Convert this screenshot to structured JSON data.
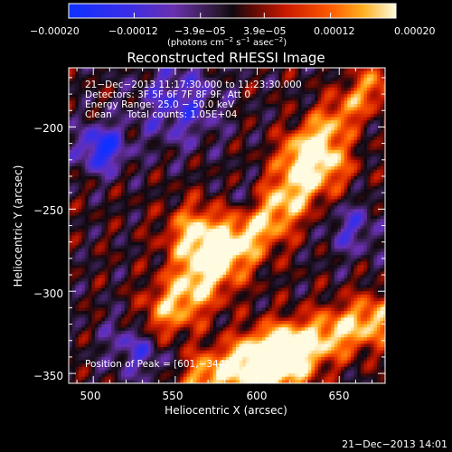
{
  "chart_data": {
    "type": "heatmap",
    "title": "Reconstructed RHESSI Image",
    "xlabel": "Heliocentric X (arcsec)",
    "ylabel": "Heliocentric Y (arcsec)",
    "xlim": [
      485,
      678
    ],
    "ylim": [
      -356,
      -164
    ],
    "x_ticks": [
      500,
      550,
      600,
      650
    ],
    "y_ticks": [
      -200,
      -250,
      -300,
      -350
    ],
    "x_tick_labels": [
      "500",
      "550",
      "600",
      "650"
    ],
    "y_tick_labels": [
      "−200",
      "−250",
      "−300",
      "−350"
    ],
    "colorbar": {
      "range": [
        -0.0002,
        0.0002
      ],
      "tick_labels": [
        "−0.00020",
        "−0.00012",
        "−3.9e−05",
        "3.9e−05",
        "0.00012",
        "0.00020"
      ],
      "units_main": "(photons cm",
      "units_exp1": "−2",
      "units_mid": " s",
      "units_exp2": "−1",
      "units_mid2": " asec",
      "units_exp3": "−2",
      "units_end": ")"
    },
    "peak": {
      "x": 601,
      "y": -344
    },
    "features": [
      {
        "kind": "ridge",
        "from": [
          540,
          -318
        ],
        "to": [
          640,
          -222
        ],
        "width": 12,
        "amplitude": 0.00019
      },
      {
        "kind": "ridge",
        "from": [
          570,
          -352
        ],
        "to": [
          670,
          -318
        ],
        "width": 11,
        "amplitude": 0.00018
      },
      {
        "kind": "ridge",
        "from": [
          625,
          -215
        ],
        "to": [
          672,
          -174
        ],
        "width": 9,
        "amplitude": 0.00013
      },
      {
        "kind": "blob",
        "center": [
          612,
          -344
        ],
        "width": 14,
        "amplitude": 0.0002
      },
      {
        "kind": "blob",
        "center": [
          563,
          -266
        ],
        "width": 13,
        "amplitude": 0.00018
      },
      {
        "kind": "blob",
        "center": [
          505,
          -213
        ],
        "width": 10,
        "amplitude": -0.00018
      },
      {
        "kind": "blob",
        "center": [
          530,
          -330
        ],
        "width": 14,
        "amplitude": -0.00014
      },
      {
        "kind": "blob",
        "center": [
          552,
          -186
        ],
        "width": 18,
        "amplitude": -0.00011
      },
      {
        "kind": "blob",
        "center": [
          593,
          -245
        ],
        "width": 9,
        "amplitude": -8e-05
      },
      {
        "kind": "blob",
        "center": [
          658,
          -262
        ],
        "width": 12,
        "amplitude": -9e-05
      }
    ],
    "annotations": [
      "21−Dec−2013 11:17:30.000 to 11:23:30.000",
      "Detectors: 3F 5F 6F 7F 8F 9F, Att 0",
      "Energy Range: 25.0 − 50.0 keV",
      "Clean     Total counts: 1.05E+04"
    ],
    "peak_label": "Position of Peak = [601,−344]"
  },
  "footer": {
    "timestamp": "21−Dec−2013 14:01"
  },
  "colors": {
    "background": "#000000",
    "negative_end": "#1030ff",
    "negative_mid": "#6a30b0",
    "zero": "#141018",
    "positive_mid": "#c81800",
    "positive_high": "#ff8a00",
    "positive_end": "#fffbe0"
  }
}
